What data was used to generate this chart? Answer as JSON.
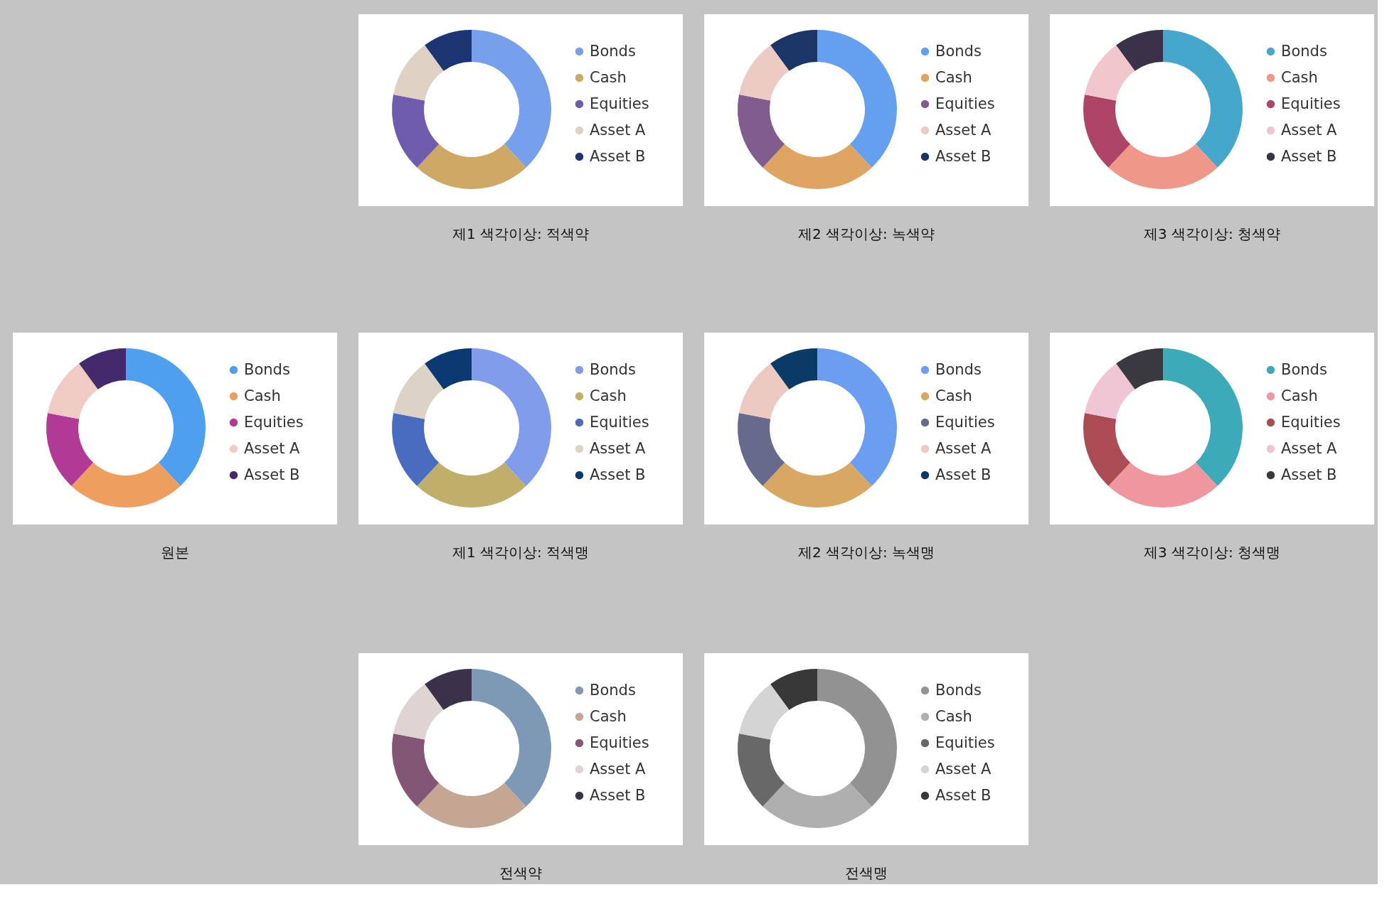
{
  "chart_data": [
    {
      "type": "donut",
      "title": "제1 색각이상: 적색약",
      "categories": [
        "Bonds",
        "Cash",
        "Equities",
        "Asset A",
        "Asset B"
      ],
      "values": [
        38,
        24,
        16,
        12,
        10
      ],
      "colors": [
        "#76a0eb",
        "#cfa866",
        "#705cae",
        "#e0d1c5",
        "#1c3673"
      ],
      "legend": "right"
    },
    {
      "type": "donut",
      "title": "제2 색각이상: 녹색약",
      "categories": [
        "Bonds",
        "Cash",
        "Equities",
        "Asset A",
        "Asset B"
      ],
      "values": [
        38,
        24,
        16,
        12,
        10
      ],
      "colors": [
        "#659ff0",
        "#dfa461",
        "#815d8f",
        "#eccbc2",
        "#1b3566"
      ],
      "legend": "right"
    },
    {
      "type": "donut",
      "title": "제3 색각이상: 청색약",
      "categories": [
        "Bonds",
        "Cash",
        "Equities",
        "Asset A",
        "Asset B"
      ],
      "values": [
        38,
        24,
        16,
        12,
        10
      ],
      "colors": [
        "#46a7cc",
        "#ef988a",
        "#ae4569",
        "#f1c7cd",
        "#3a3249"
      ],
      "legend": "right"
    },
    {
      "type": "donut",
      "title": "원본",
      "categories": [
        "Bonds",
        "Cash",
        "Equities",
        "Asset A",
        "Asset B"
      ],
      "values": [
        38,
        24,
        16,
        12,
        10
      ],
      "colors": [
        "#4f9ff0",
        "#ee9e5f",
        "#b13a97",
        "#efcbc3",
        "#432a6c"
      ],
      "legend": "right"
    },
    {
      "type": "donut",
      "title": "제1 색각이상: 적색맹",
      "categories": [
        "Bonds",
        "Cash",
        "Equities",
        "Asset A",
        "Asset B"
      ],
      "values": [
        38,
        24,
        16,
        12,
        10
      ],
      "colors": [
        "#819ceb",
        "#c1ae6a",
        "#4a6cbe",
        "#dcd3c6",
        "#0b3a73"
      ],
      "legend": "right"
    },
    {
      "type": "donut",
      "title": "제2 색각이상: 녹색맹",
      "categories": [
        "Bonds",
        "Cash",
        "Equities",
        "Asset A",
        "Asset B"
      ],
      "values": [
        38,
        24,
        16,
        12,
        10
      ],
      "colors": [
        "#6b9ef0",
        "#d8a762",
        "#676a8a",
        "#edcac1",
        "#0a3a66"
      ],
      "legend": "right"
    },
    {
      "type": "donut",
      "title": "제3 색각이상: 청색맹",
      "categories": [
        "Bonds",
        "Cash",
        "Equities",
        "Asset A",
        "Asset B"
      ],
      "values": [
        38,
        24,
        16,
        12,
        10
      ],
      "colors": [
        "#3caab8",
        "#f0969f",
        "#ab4c52",
        "#f1c6d4",
        "#3a393f"
      ],
      "legend": "right"
    },
    {
      "type": "donut",
      "title": "전색약",
      "categories": [
        "Bonds",
        "Cash",
        "Equities",
        "Asset A",
        "Asset B"
      ],
      "values": [
        38,
        24,
        16,
        12,
        10
      ],
      "colors": [
        "#7e99b6",
        "#c5a692",
        "#845676",
        "#e0d4d2",
        "#3c314b"
      ],
      "legend": "right"
    },
    {
      "type": "donut",
      "title": "전색맹",
      "categories": [
        "Bonds",
        "Cash",
        "Equities",
        "Asset A",
        "Asset B"
      ],
      "values": [
        38,
        24,
        16,
        12,
        10
      ],
      "colors": [
        "#929292",
        "#afafaf",
        "#686868",
        "#d4d4d4",
        "#383838"
      ],
      "legend": "right"
    }
  ]
}
